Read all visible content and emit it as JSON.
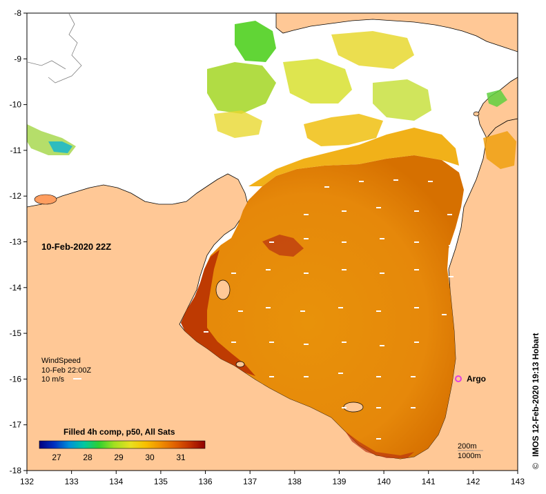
{
  "map": {
    "date_label": "10-Feb-2020 22Z",
    "credit": "IMOS 12-Feb-2020 19:13 Hobart",
    "copyright_symbol": "©",
    "x_ticks": [
      "132",
      "133",
      "134",
      "135",
      "136",
      "137",
      "138",
      "139",
      "140",
      "141",
      "142",
      "143"
    ],
    "y_ticks": [
      "-8",
      "-9",
      "-10",
      "-11",
      "-12",
      "-13",
      "-14",
      "-15",
      "-16",
      "-17",
      "-18"
    ],
    "wind": {
      "title": "WindSpeed",
      "time": "10-Feb 22:00Z",
      "scale": "10 m/s"
    },
    "argo": {
      "label": "Argo",
      "color": "#e040e0"
    },
    "colorbar": {
      "title": "Filled 4h comp, p50, All Sats",
      "ticks": [
        "27",
        "28",
        "29",
        "30",
        "31"
      ],
      "colors": [
        "#000080",
        "#0030c0",
        "#0090d8",
        "#00c8a0",
        "#30d030",
        "#a0e020",
        "#e8e020",
        "#f8c000",
        "#f09000",
        "#e06000",
        "#c03000",
        "#900000"
      ]
    },
    "contours": {
      "line1": "200m",
      "line2": "1000m"
    },
    "colors": {
      "land": "#ffc896",
      "sst_warm": "#e88a00",
      "sst_hot": "#b02000",
      "sst_cool": "#c8e040"
    }
  }
}
